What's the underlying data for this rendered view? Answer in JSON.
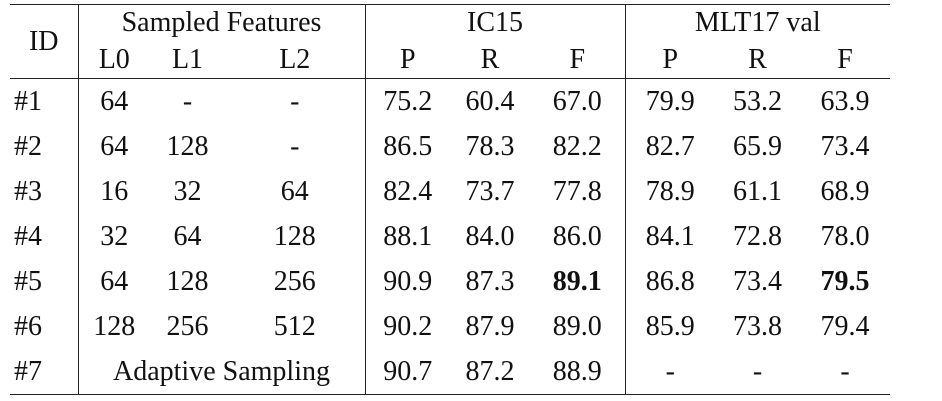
{
  "header": {
    "id": "ID",
    "groups": [
      "Sampled Features",
      "IC15",
      "MLT17 val"
    ],
    "columns": [
      "L0",
      "L1",
      "L2",
      "P",
      "R",
      "F",
      "P",
      "R",
      "F"
    ]
  },
  "rows": [
    [
      "#1",
      "64",
      "-",
      "-",
      "75.2",
      "60.4",
      "67.0",
      "79.9",
      "53.2",
      "63.9"
    ],
    [
      "#2",
      "64",
      "128",
      "-",
      "86.5",
      "78.3",
      "82.2",
      "82.7",
      "65.9",
      "73.4"
    ],
    [
      "#3",
      "16",
      "32",
      "64",
      "82.4",
      "73.7",
      "77.8",
      "78.9",
      "61.1",
      "68.9"
    ],
    [
      "#4",
      "32",
      "64",
      "128",
      "88.1",
      "84.0",
      "86.0",
      "84.1",
      "72.8",
      "78.0"
    ],
    [
      "#5",
      "64",
      "128",
      "256",
      "90.9",
      "87.3",
      {
        "text": "89.1",
        "bold": true
      },
      "86.8",
      "73.4",
      {
        "text": "79.5",
        "bold": true
      }
    ],
    [
      "#6",
      "128",
      "256",
      "512",
      "90.2",
      "87.9",
      "89.0",
      "85.9",
      "73.8",
      "79.4"
    ],
    [
      "#7",
      {
        "text": "Adaptive Sampling",
        "colspan": 3
      },
      "90.7",
      "87.2",
      "88.9",
      "-",
      "-",
      "-"
    ]
  ]
}
